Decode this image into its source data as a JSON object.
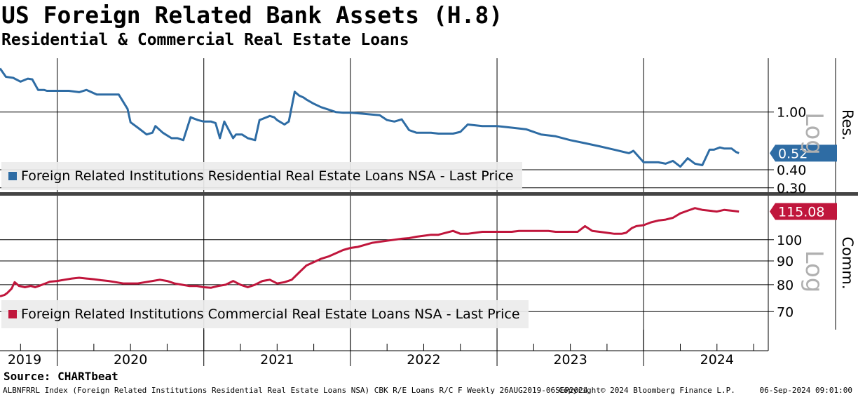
{
  "header": {
    "title": "US Foreign Related Bank Assets (H.8)",
    "subtitle": "Residential & Commercial Real Estate Loans"
  },
  "source": "Source: CHARTbeat",
  "footer": {
    "left": "ALBNFRRL Index (Foreign Related Institutions Residential Real Estate Loans NSA) CBK R/E Loans R/C F  Weekly 26AUG2019-06SEP2024",
    "copyright": "Copyright© 2024 Bloomberg Finance L.P.",
    "timestamp": "06-Sep-2024 09:01:00"
  },
  "colors": {
    "residential": "#2e6ca4",
    "commercial": "#c0163c",
    "grid": "#000000",
    "log_label": "#b0b0b0"
  },
  "chart_data": [
    {
      "type": "line",
      "panel_label": "Res.",
      "scale_label": "Log",
      "scale": "log",
      "ylim": [
        0.28,
        2.35
      ],
      "yticks": [
        1.0,
        0.4,
        0.3
      ],
      "ytick_labels": [
        "1.00",
        "0.40",
        "0.30"
      ],
      "last_value": 0.52,
      "last_value_label": "0.52",
      "legend": "Foreign Related Institutions Residential Real Estate Loans NSA - Last Price",
      "xlim": [
        2019.61,
        2024.85
      ],
      "x_tick_labels": [
        "2019",
        "2020",
        "2021",
        "2022",
        "2023",
        "2024"
      ],
      "x_label_positions": [
        2019.5,
        2020.5,
        2021.5,
        2022.5,
        2023.5,
        2024.5
      ],
      "x_year_boundaries": [
        2020,
        2021,
        2022,
        2023,
        2024
      ],
      "series": [
        {
          "x": [
            2019.61,
            2019.65,
            2019.7,
            2019.75,
            2019.8,
            2019.83,
            2019.87,
            2019.91,
            2019.93,
            2019.96,
            2019.98,
            2020.0,
            2020.03,
            2020.08,
            2020.15,
            2020.2,
            2020.27,
            2020.32,
            2020.37,
            2020.42,
            2020.48,
            2020.5,
            2020.55,
            2020.61,
            2020.65,
            2020.67,
            2020.72,
            2020.78,
            2020.82,
            2020.86,
            2020.91,
            2020.96,
            2021.0,
            2021.05,
            2021.08,
            2021.11,
            2021.14,
            2021.18,
            2021.2,
            2021.22,
            2021.26,
            2021.3,
            2021.35,
            2021.38,
            2021.45,
            2021.48,
            2021.5,
            2021.55,
            2021.58,
            2021.62,
            2021.65,
            2021.68,
            2021.7,
            2021.75,
            2021.8,
            2021.85,
            2021.9,
            2021.95,
            2022.0,
            2022.05,
            2022.1,
            2022.15,
            2022.2,
            2022.25,
            2022.3,
            2022.35,
            2022.4,
            2022.45,
            2022.5,
            2022.55,
            2022.6,
            2022.65,
            2022.7,
            2022.75,
            2022.8,
            2022.9,
            2023.0,
            2023.1,
            2023.2,
            2023.3,
            2023.4,
            2023.5,
            2023.6,
            2023.7,
            2023.8,
            2023.9,
            2023.93,
            2024.0,
            2024.1,
            2024.15,
            2024.2,
            2024.25,
            2024.3,
            2024.35,
            2024.4,
            2024.45,
            2024.48,
            2024.52,
            2024.55,
            2024.6,
            2024.63,
            2024.65
          ],
          "y": [
            2.0,
            1.75,
            1.72,
            1.62,
            1.7,
            1.68,
            1.42,
            1.42,
            1.4,
            1.4,
            1.4,
            1.4,
            1.4,
            1.4,
            1.37,
            1.42,
            1.32,
            1.32,
            1.32,
            1.32,
            1.05,
            0.85,
            0.78,
            0.7,
            0.72,
            0.8,
            0.72,
            0.66,
            0.66,
            0.64,
            0.92,
            0.88,
            0.86,
            0.86,
            0.84,
            0.66,
            0.86,
            0.72,
            0.66,
            0.7,
            0.7,
            0.66,
            0.64,
            0.88,
            0.94,
            0.92,
            0.88,
            0.82,
            0.86,
            1.38,
            1.3,
            1.26,
            1.22,
            1.14,
            1.08,
            1.04,
            1.0,
            0.99,
            0.99,
            0.98,
            0.97,
            0.96,
            0.95,
            0.88,
            0.86,
            0.89,
            0.75,
            0.72,
            0.72,
            0.72,
            0.71,
            0.71,
            0.71,
            0.73,
            0.82,
            0.8,
            0.8,
            0.78,
            0.76,
            0.7,
            0.68,
            0.64,
            0.61,
            0.58,
            0.55,
            0.52,
            0.54,
            0.45,
            0.45,
            0.44,
            0.46,
            0.42,
            0.48,
            0.44,
            0.43,
            0.55,
            0.55,
            0.57,
            0.56,
            0.56,
            0.53,
            0.52
          ]
        }
      ]
    },
    {
      "type": "line",
      "panel_label": "Comm.",
      "scale_label": "Log",
      "scale": "log",
      "ylim": [
        64,
        124
      ],
      "yticks": [
        100,
        90,
        80,
        70
      ],
      "ytick_labels": [
        "100",
        "90",
        "80",
        "70"
      ],
      "last_value": 115.08,
      "last_value_label": "115.08",
      "legend": "Foreign Related Institutions Commercial Real Estate Loans NSA - Last Price",
      "xlim": [
        2019.61,
        2024.85
      ],
      "series": [
        {
          "x": [
            2019.61,
            2019.64,
            2019.66,
            2019.69,
            2019.71,
            2019.74,
            2019.78,
            2019.82,
            2019.85,
            2019.88,
            2019.92,
            2019.95,
            2020.0,
            2020.05,
            2020.1,
            2020.15,
            2020.2,
            2020.25,
            2020.3,
            2020.35,
            2020.4,
            2020.45,
            2020.5,
            2020.55,
            2020.6,
            2020.65,
            2020.7,
            2020.75,
            2020.8,
            2020.85,
            2020.9,
            2020.95,
            2021.0,
            2021.05,
            2021.1,
            2021.15,
            2021.2,
            2021.25,
            2021.3,
            2021.35,
            2021.4,
            2021.45,
            2021.5,
            2021.55,
            2021.6,
            2021.65,
            2021.7,
            2021.75,
            2021.8,
            2021.85,
            2021.9,
            2021.95,
            2022.0,
            2022.05,
            2022.1,
            2022.15,
            2022.2,
            2022.25,
            2022.3,
            2022.35,
            2022.4,
            2022.45,
            2022.5,
            2022.55,
            2022.6,
            2022.65,
            2022.7,
            2022.75,
            2022.8,
            2022.85,
            2022.9,
            2022.95,
            2023.0,
            2023.05,
            2023.1,
            2023.15,
            2023.2,
            2023.25,
            2023.3,
            2023.35,
            2023.4,
            2023.45,
            2023.5,
            2023.55,
            2023.6,
            2023.65,
            2023.7,
            2023.75,
            2023.8,
            2023.83,
            2023.85,
            2023.88,
            2023.92,
            2023.95,
            2024.0,
            2024.05,
            2024.1,
            2024.15,
            2024.2,
            2024.25,
            2024.3,
            2024.35,
            2024.4,
            2024.45,
            2024.5,
            2024.55,
            2024.6,
            2024.65
          ],
          "y": [
            75.5,
            76.0,
            76.8,
            78.5,
            81.0,
            79.5,
            79.0,
            79.5,
            79.0,
            79.6,
            80.5,
            81.2,
            81.5,
            82.0,
            82.5,
            82.8,
            82.5,
            82.2,
            81.8,
            81.5,
            81.0,
            80.5,
            80.5,
            80.5,
            81.0,
            81.5,
            82.0,
            81.5,
            80.5,
            80.0,
            79.5,
            79.5,
            79.0,
            78.8,
            79.5,
            80.0,
            81.5,
            80.0,
            79.0,
            80.0,
            81.5,
            82.0,
            80.5,
            81.0,
            82.0,
            85.0,
            88.0,
            89.5,
            91.0,
            92.0,
            93.5,
            95.0,
            96.0,
            96.5,
            97.5,
            98.5,
            99.0,
            99.5,
            100.0,
            100.5,
            100.8,
            101.5,
            102.0,
            102.5,
            102.5,
            103.5,
            104.5,
            103.0,
            103.0,
            103.5,
            104.0,
            104.0,
            104.0,
            104.0,
            104.0,
            104.5,
            104.5,
            104.5,
            104.5,
            104.5,
            104.0,
            104.0,
            104.0,
            104.0,
            107.0,
            104.5,
            104.0,
            103.5,
            103.0,
            103.0,
            103.0,
            103.5,
            106.0,
            107.0,
            107.5,
            109.0,
            110.0,
            110.5,
            111.5,
            114.0,
            115.5,
            117.0,
            116.0,
            115.5,
            115.0,
            116.0,
            115.5,
            115.0
          ]
        }
      ]
    }
  ]
}
